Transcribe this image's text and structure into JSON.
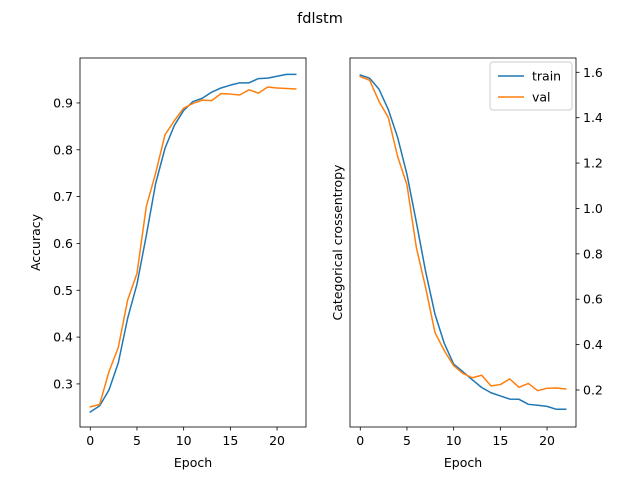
{
  "figure": {
    "title": "fdlstm"
  },
  "chart_data": [
    {
      "type": "line",
      "title": "",
      "xlabel": "Epoch",
      "ylabel": "Accuracy",
      "xlim": [
        -1.1,
        23.1
      ],
      "ylim": [
        0.208,
        0.996
      ],
      "xticks": [
        0,
        5,
        10,
        15,
        20
      ],
      "yticks": [
        0.3,
        0.4,
        0.5,
        0.6,
        0.7,
        0.8,
        0.9
      ],
      "y_axis_side": "left",
      "grid": false,
      "legend": null,
      "x": [
        0,
        1,
        2,
        3,
        4,
        5,
        6,
        7,
        8,
        9,
        10,
        11,
        12,
        13,
        14,
        15,
        16,
        17,
        18,
        19,
        20,
        21,
        22
      ],
      "series": [
        {
          "name": "train",
          "color": "#1f77b4",
          "values": [
            0.24,
            0.253,
            0.287,
            0.345,
            0.44,
            0.513,
            0.617,
            0.728,
            0.803,
            0.852,
            0.884,
            0.903,
            0.91,
            0.923,
            0.932,
            0.938,
            0.943,
            0.943,
            0.952,
            0.953,
            0.957,
            0.961,
            0.961
          ]
        },
        {
          "name": "val",
          "color": "#ff7f0e",
          "values": [
            0.251,
            0.256,
            0.326,
            0.378,
            0.479,
            0.536,
            0.679,
            0.75,
            0.832,
            0.862,
            0.889,
            0.899,
            0.906,
            0.905,
            0.92,
            0.919,
            0.917,
            0.928,
            0.921,
            0.934,
            0.932,
            0.931,
            0.93
          ]
        }
      ]
    },
    {
      "type": "line",
      "title": "",
      "xlabel": "Epoch",
      "ylabel": "Categorical crossentropy",
      "xlim": [
        -1.1,
        23.1
      ],
      "ylim": [
        0.037,
        1.663
      ],
      "xticks": [
        0,
        5,
        10,
        15,
        20
      ],
      "yticks": [
        0.2,
        0.4,
        0.6,
        0.8,
        1.0,
        1.2,
        1.4,
        1.6
      ],
      "y_axis_side": "right",
      "grid": false,
      "legend": "upper right",
      "x": [
        0,
        1,
        2,
        3,
        4,
        5,
        6,
        7,
        8,
        9,
        10,
        11,
        12,
        13,
        14,
        15,
        16,
        17,
        18,
        19,
        20,
        21,
        22
      ],
      "series": [
        {
          "name": "train",
          "color": "#1f77b4",
          "values": [
            1.588,
            1.574,
            1.526,
            1.436,
            1.313,
            1.15,
            0.94,
            0.722,
            0.534,
            0.405,
            0.314,
            0.28,
            0.245,
            0.211,
            0.188,
            0.174,
            0.16,
            0.159,
            0.137,
            0.133,
            0.128,
            0.115,
            0.115
          ]
        },
        {
          "name": "val",
          "color": "#ff7f0e",
          "values": [
            1.581,
            1.565,
            1.472,
            1.401,
            1.229,
            1.104,
            0.829,
            0.651,
            0.453,
            0.373,
            0.307,
            0.273,
            0.254,
            0.265,
            0.218,
            0.224,
            0.249,
            0.212,
            0.229,
            0.197,
            0.208,
            0.209,
            0.205
          ]
        }
      ]
    }
  ]
}
